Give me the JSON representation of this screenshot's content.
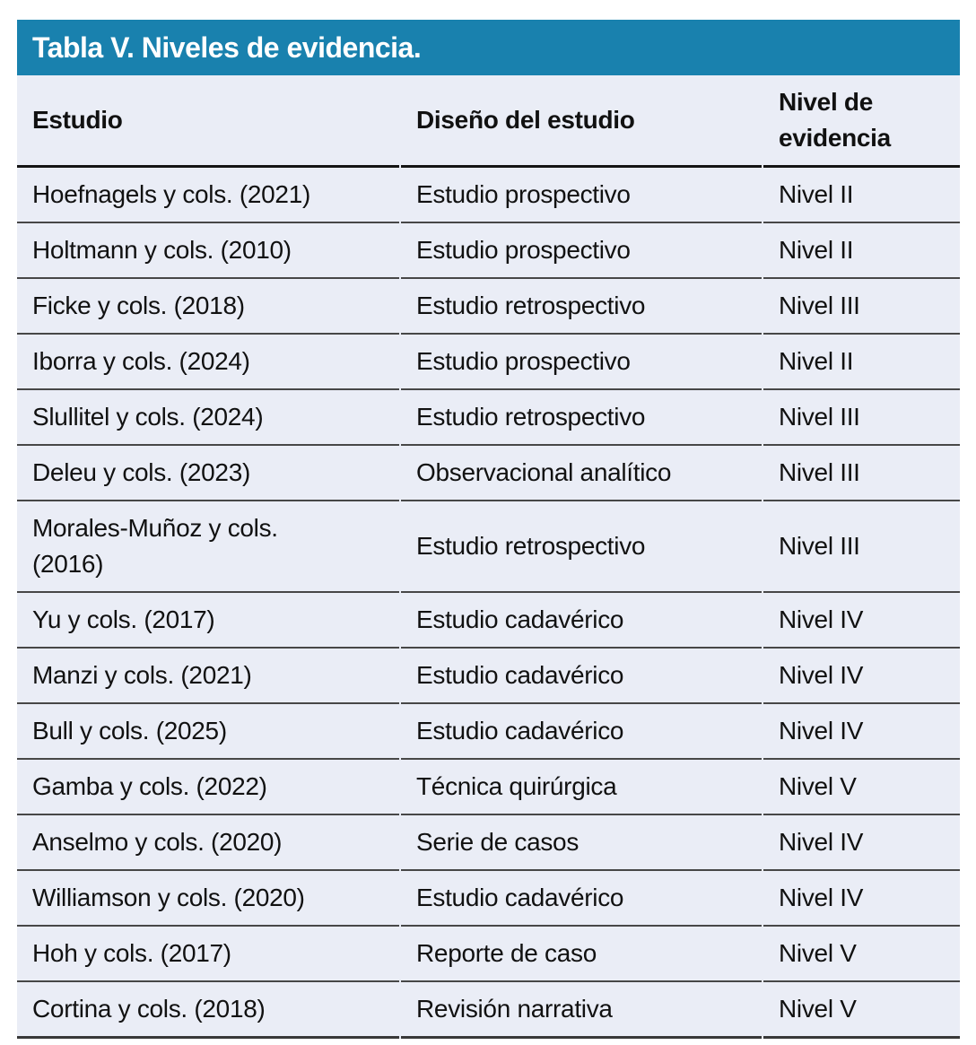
{
  "table": {
    "title": "Tabla V. Niveles de evidencia.",
    "columns": [
      "Estudio",
      "Diseño del estudio",
      "Nivel de evidencia"
    ],
    "rows": [
      {
        "study": "Hoefnagels y cols. (2021)",
        "design": "Estudio prospectivo",
        "level": "Nivel II"
      },
      {
        "study": "Holtmann y cols. (2010)",
        "design": "Estudio prospectivo",
        "level": "Nivel II"
      },
      {
        "study": "Ficke y cols. (2018)",
        "design": "Estudio retrospectivo",
        "level": "Nivel III"
      },
      {
        "study": "Iborra y cols. (2024)",
        "design": "Estudio prospectivo",
        "level": "Nivel II"
      },
      {
        "study": "Slullitel y cols. (2024)",
        "design": "Estudio retrospectivo",
        "level": "Nivel III"
      },
      {
        "study": "Deleu y cols. (2023)",
        "design": "Observacional analítico",
        "level": "Nivel III"
      },
      {
        "study": "Morales-Muñoz y cols.\n(2016)",
        "design": "Estudio retrospectivo",
        "level": "Nivel III"
      },
      {
        "study": "Yu y cols. (2017)",
        "design": "Estudio cadavérico",
        "level": "Nivel IV"
      },
      {
        "study": "Manzi y cols. (2021)",
        "design": "Estudio cadavérico",
        "level": "Nivel IV"
      },
      {
        "study": "Bull y cols. (2025)",
        "design": "Estudio cadavérico",
        "level": "Nivel IV"
      },
      {
        "study": "Gamba y cols. (2022)",
        "design": "Técnica quirúrgica",
        "level": "Nivel V"
      },
      {
        "study": "Anselmo y cols. (2020)",
        "design": "Serie de casos",
        "level": "Nivel IV"
      },
      {
        "study": "Williamson y cols. (2020)",
        "design": "Estudio cadavérico",
        "level": "Nivel IV"
      },
      {
        "study": "Hoh y cols. (2017)",
        "design": "Reporte de caso",
        "level": "Nivel V"
      },
      {
        "study": "Cortina y cols. (2018)",
        "design": "Revisión narrativa",
        "level": "Nivel V"
      }
    ],
    "colors": {
      "header_bar": "#1981ae",
      "row_background": "#eaedf6",
      "title_text": "#ffffff",
      "body_text": "#111111"
    }
  }
}
